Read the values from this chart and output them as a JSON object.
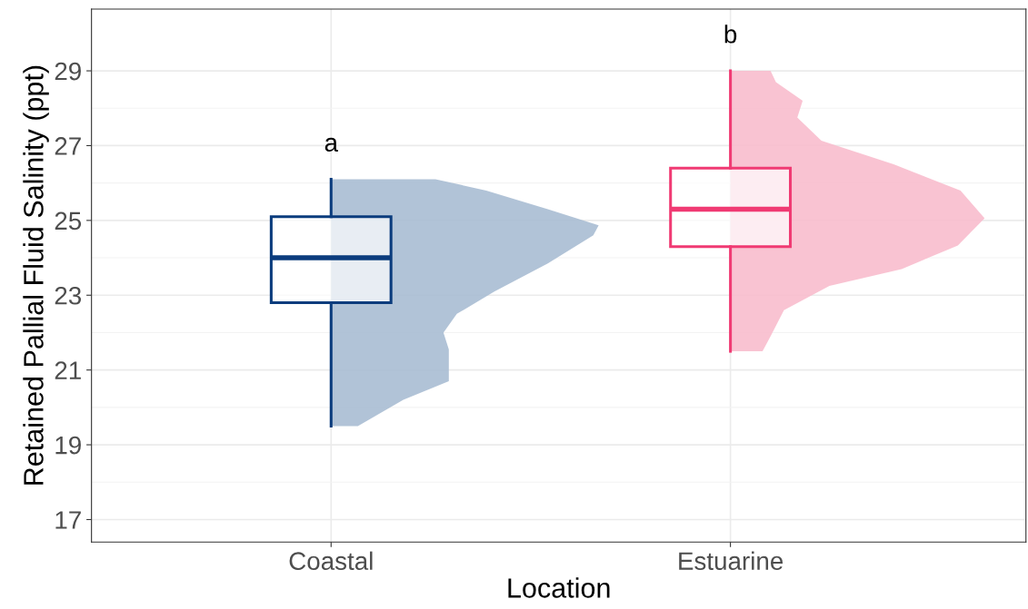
{
  "chart_data": {
    "type": "box",
    "xlabel": "Location",
    "ylabel": "Retained Pallial Fluid Salinity (ppt)",
    "categories": [
      "Coastal",
      "Estuarine"
    ],
    "colors": [
      "#0b3c7d",
      "#f03a73"
    ],
    "boxes": [
      {
        "low": 19.5,
        "q1": 22.8,
        "median": 24.0,
        "q3": 25.1,
        "high": 26.1
      },
      {
        "low": 21.5,
        "q1": 24.3,
        "median": 25.3,
        "q3": 26.4,
        "high": 29.0
      }
    ],
    "ylim": [
      16.4,
      30.65
    ],
    "yticks": [
      17,
      19,
      21,
      23,
      25,
      27,
      29
    ],
    "grid": true,
    "annotations": [
      "a",
      "b"
    ]
  }
}
